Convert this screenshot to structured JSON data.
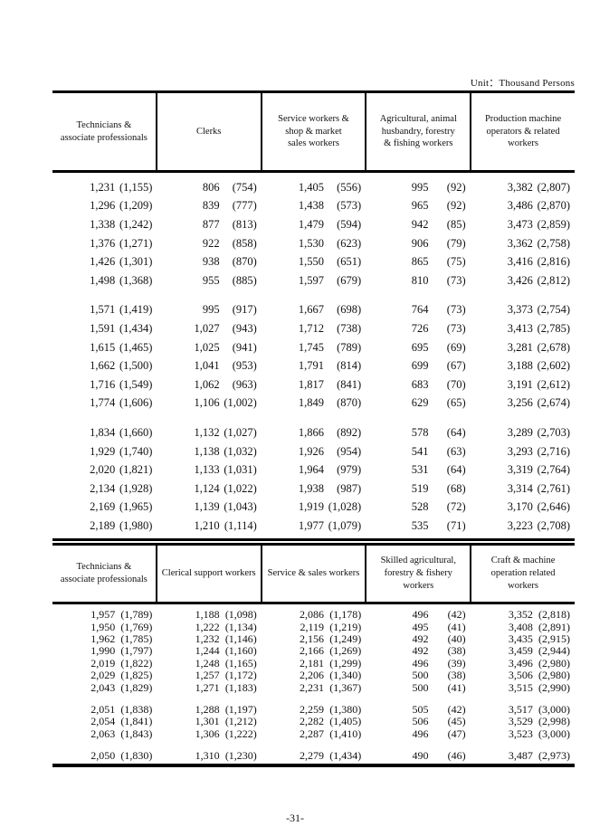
{
  "page": {
    "unit_label": "Unit：Thousand Persons",
    "page_number": "-31-"
  },
  "table1": {
    "headers": [
      "Technicians &\nassociate professionals",
      "Clerks",
      "Service workers &\nshop & market\nsales workers",
      "Agricultural, animal\nhusbandry, forestry\n& fishing workers",
      "Production machine\noperators & related\nworkers"
    ],
    "blocks": [
      [
        [
          "1,231",
          "(1,155)",
          "806",
          "(754)",
          "1,405",
          "(556)",
          "995",
          "(92)",
          "3,382",
          "(2,807)"
        ],
        [
          "1,296",
          "(1,209)",
          "839",
          "(777)",
          "1,438",
          "(573)",
          "965",
          "(92)",
          "3,486",
          "(2,870)"
        ],
        [
          "1,338",
          "(1,242)",
          "877",
          "(813)",
          "1,479",
          "(594)",
          "942",
          "(85)",
          "3,473",
          "(2,859)"
        ],
        [
          "1,376",
          "(1,271)",
          "922",
          "(858)",
          "1,530",
          "(623)",
          "906",
          "(79)",
          "3,362",
          "(2,758)"
        ],
        [
          "1,426",
          "(1,301)",
          "938",
          "(870)",
          "1,550",
          "(651)",
          "865",
          "(75)",
          "3,416",
          "(2,816)"
        ],
        [
          "1,498",
          "(1,368)",
          "955",
          "(885)",
          "1,597",
          "(679)",
          "810",
          "(73)",
          "3,426",
          "(2,812)"
        ]
      ],
      [
        [
          "1,571",
          "(1,419)",
          "995",
          "(917)",
          "1,667",
          "(698)",
          "764",
          "(73)",
          "3,373",
          "(2,754)"
        ],
        [
          "1,591",
          "(1,434)",
          "1,027",
          "(943)",
          "1,712",
          "(738)",
          "726",
          "(73)",
          "3,413",
          "(2,785)"
        ],
        [
          "1,615",
          "(1,465)",
          "1,025",
          "(941)",
          "1,745",
          "(789)",
          "695",
          "(69)",
          "3,281",
          "(2,678)"
        ],
        [
          "1,662",
          "(1,500)",
          "1,041",
          "(953)",
          "1,791",
          "(814)",
          "699",
          "(67)",
          "3,188",
          "(2,602)"
        ],
        [
          "1,716",
          "(1,549)",
          "1,062",
          "(963)",
          "1,817",
          "(841)",
          "683",
          "(70)",
          "3,191",
          "(2,612)"
        ],
        [
          "1,774",
          "(1,606)",
          "1,106",
          "(1,002)",
          "1,849",
          "(870)",
          "629",
          "(65)",
          "3,256",
          "(2,674)"
        ]
      ],
      [
        [
          "1,834",
          "(1,660)",
          "1,132",
          "(1,027)",
          "1,866",
          "(892)",
          "578",
          "(64)",
          "3,289",
          "(2,703)"
        ],
        [
          "1,929",
          "(1,740)",
          "1,138",
          "(1,032)",
          "1,926",
          "(954)",
          "541",
          "(63)",
          "3,293",
          "(2,716)"
        ],
        [
          "2,020",
          "(1,821)",
          "1,133",
          "(1,031)",
          "1,964",
          "(979)",
          "531",
          "(64)",
          "3,319",
          "(2,764)"
        ],
        [
          "2,134",
          "(1,928)",
          "1,124",
          "(1,022)",
          "1,938",
          "(987)",
          "519",
          "(68)",
          "3,314",
          "(2,761)"
        ],
        [
          "2,169",
          "(1,965)",
          "1,139",
          "(1,043)",
          "1,919",
          "(1,028)",
          "528",
          "(72)",
          "3,170",
          "(2,646)"
        ],
        [
          "2,189",
          "(1,980)",
          "1,210",
          "(1,114)",
          "1,977",
          "(1,079)",
          "535",
          "(71)",
          "3,223",
          "(2,708)"
        ]
      ]
    ]
  },
  "table2": {
    "headers": [
      "Technicians &\nassociate professionals",
      "Clerical support workers",
      "Service & sales workers",
      "Skilled agricultural,\nforestry & fishery\nworkers",
      "Craft & machine\noperation related\nworkers"
    ],
    "blocks": [
      [
        [
          "1,957",
          "(1,789)",
          "1,188",
          "(1,098)",
          "2,086",
          "(1,178)",
          "496",
          "(42)",
          "3,352",
          "(2,818)"
        ],
        [
          "1,950",
          "(1,769)",
          "1,222",
          "(1,134)",
          "2,119",
          "(1,219)",
          "495",
          "(41)",
          "3,408",
          "(2,891)"
        ],
        [
          "1,962",
          "(1,785)",
          "1,232",
          "(1,146)",
          "2,156",
          "(1,249)",
          "492",
          "(40)",
          "3,435",
          "(2,915)"
        ],
        [
          "1,990",
          "(1,797)",
          "1,244",
          "(1,160)",
          "2,166",
          "(1,269)",
          "492",
          "(38)",
          "3,459",
          "(2,944)"
        ],
        [
          "2,019",
          "(1,822)",
          "1,248",
          "(1,165)",
          "2,181",
          "(1,299)",
          "496",
          "(39)",
          "3,496",
          "(2,980)"
        ],
        [
          "2,029",
          "(1,825)",
          "1,257",
          "(1,172)",
          "2,206",
          "(1,340)",
          "500",
          "(38)",
          "3,506",
          "(2,980)"
        ],
        [
          "2,043",
          "(1,829)",
          "1,271",
          "(1,183)",
          "2,231",
          "(1,367)",
          "500",
          "(41)",
          "3,515",
          "(2,990)"
        ]
      ],
      [
        [
          "2,051",
          "(1,838)",
          "1,288",
          "(1,197)",
          "2,259",
          "(1,380)",
          "505",
          "(42)",
          "3,517",
          "(3,000)"
        ],
        [
          "2,054",
          "(1,841)",
          "1,301",
          "(1,212)",
          "2,282",
          "(1,405)",
          "506",
          "(45)",
          "3,529",
          "(2,998)"
        ],
        [
          "2,063",
          "(1,843)",
          "1,306",
          "(1,222)",
          "2,287",
          "(1,410)",
          "496",
          "(47)",
          "3,523",
          "(3,000)"
        ]
      ],
      [
        [
          "2,050",
          "(1,830)",
          "1,310",
          "(1,230)",
          "2,279",
          "(1,434)",
          "490",
          "(46)",
          "3,487",
          "(2,973)"
        ]
      ]
    ]
  }
}
